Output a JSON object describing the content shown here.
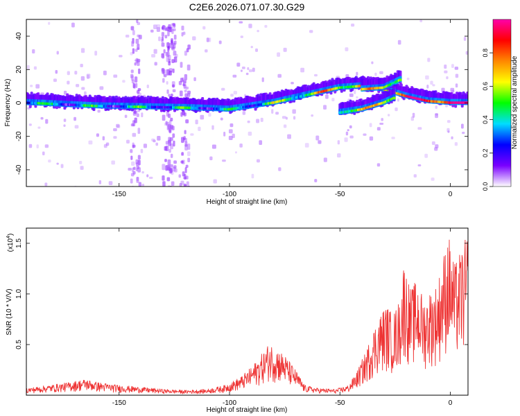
{
  "title": "C2E6.2026.071.07.30.G29",
  "colors": {
    "series": "#ee3333",
    "frame": "#000000",
    "background": "#ffffff"
  },
  "chart_data": [
    {
      "type": "heatmap",
      "xlabel": "Height of straight line (km)",
      "ylabel": "Frequency (Hz)",
      "xlim": [
        -192,
        8
      ],
      "ylim": [
        -50,
        50
      ],
      "xticks": [
        -150,
        -100,
        -50,
        0
      ],
      "yticks": [
        -40,
        -20,
        0,
        20,
        40
      ],
      "colorbar": {
        "label": "Normalized spectral amplitude",
        "range": [
          0,
          1
        ],
        "ticks": [
          0.0,
          0.2,
          0.4,
          0.6,
          0.8
        ],
        "tick_labels": [
          "0.0",
          "0.2",
          "0.4",
          "0.6",
          "0.8"
        ],
        "colormap": [
          "#ffffff",
          "#7a00ff",
          "#0000ff",
          "#00ddff",
          "#00ff00",
          "#ffff00",
          "#ff8800",
          "#ff0000",
          "#ff00aa"
        ]
      },
      "ridges": [
        {
          "name": "",
          "points": [
            [
              -192,
              0
            ],
            [
              -160,
              -2
            ],
            [
              -120,
              -3
            ],
            [
              -100,
              -4
            ],
            [
              -80,
              0
            ],
            [
              -60,
              6
            ],
            [
              -50,
              9
            ],
            [
              -40,
              10
            ],
            [
              -30,
              8
            ],
            [
              -20,
              4
            ],
            [
              -10,
              1
            ],
            [
              0,
              0
            ],
            [
              8,
              0
            ]
          ]
        },
        {
          "name": "",
          "points": [
            [
              -50,
              -6
            ],
            [
              -40,
              -4
            ],
            [
              -30,
              0
            ],
            [
              -25,
              3
            ]
          ]
        },
        {
          "name": "",
          "points": [
            [
              -40,
              8
            ],
            [
              -30,
              9
            ],
            [
              -22,
              14
            ]
          ]
        }
      ]
    },
    {
      "type": "line",
      "xlabel": "Height of straight line (km)",
      "ylabel": "SNR (10 * V/V)",
      "scale_note": "(x10",
      "scale_exp": "4",
      "scale_close": ")",
      "xlim": [
        -192,
        8
      ],
      "ylim": [
        0,
        1.65
      ],
      "xticks": [
        -150,
        -100,
        -50,
        0
      ],
      "yticks": [
        0.5,
        1.0,
        1.5
      ],
      "ytick_labels": [
        "0.5",
        "1.0",
        "1.5"
      ],
      "series": [
        {
          "name": "",
          "envelope": [
            [
              -192,
              0.07
            ],
            [
              -185,
              0.09
            ],
            [
              -175,
              0.12
            ],
            [
              -165,
              0.16
            ],
            [
              -160,
              0.13
            ],
            [
              -150,
              0.1
            ],
            [
              -140,
              0.08
            ],
            [
              -130,
              0.06
            ],
            [
              -120,
              0.05
            ],
            [
              -110,
              0.06
            ],
            [
              -102,
              0.1
            ],
            [
              -95,
              0.18
            ],
            [
              -90,
              0.28
            ],
            [
              -85,
              0.42
            ],
            [
              -82,
              0.52
            ],
            [
              -79,
              0.48
            ],
            [
              -75,
              0.4
            ],
            [
              -70,
              0.25
            ],
            [
              -66,
              0.1
            ],
            [
              -60,
              0.07
            ],
            [
              -52,
              0.06
            ],
            [
              -46,
              0.1
            ],
            [
              -42,
              0.25
            ],
            [
              -38,
              0.45
            ],
            [
              -35,
              0.65
            ],
            [
              -32,
              0.8
            ],
            [
              -29,
              0.9
            ],
            [
              -26,
              0.8
            ],
            [
              -23,
              0.95
            ],
            [
              -21,
              1.35
            ],
            [
              -18,
              1.05
            ],
            [
              -15,
              1.15
            ],
            [
              -12,
              0.95
            ],
            [
              -9,
              1.05
            ],
            [
              -6,
              1.1
            ],
            [
              -3,
              1.4
            ],
            [
              -1,
              1.62
            ],
            [
              2,
              1.3
            ],
            [
              5,
              1.45
            ],
            [
              8,
              1.6
            ]
          ]
        }
      ]
    }
  ]
}
